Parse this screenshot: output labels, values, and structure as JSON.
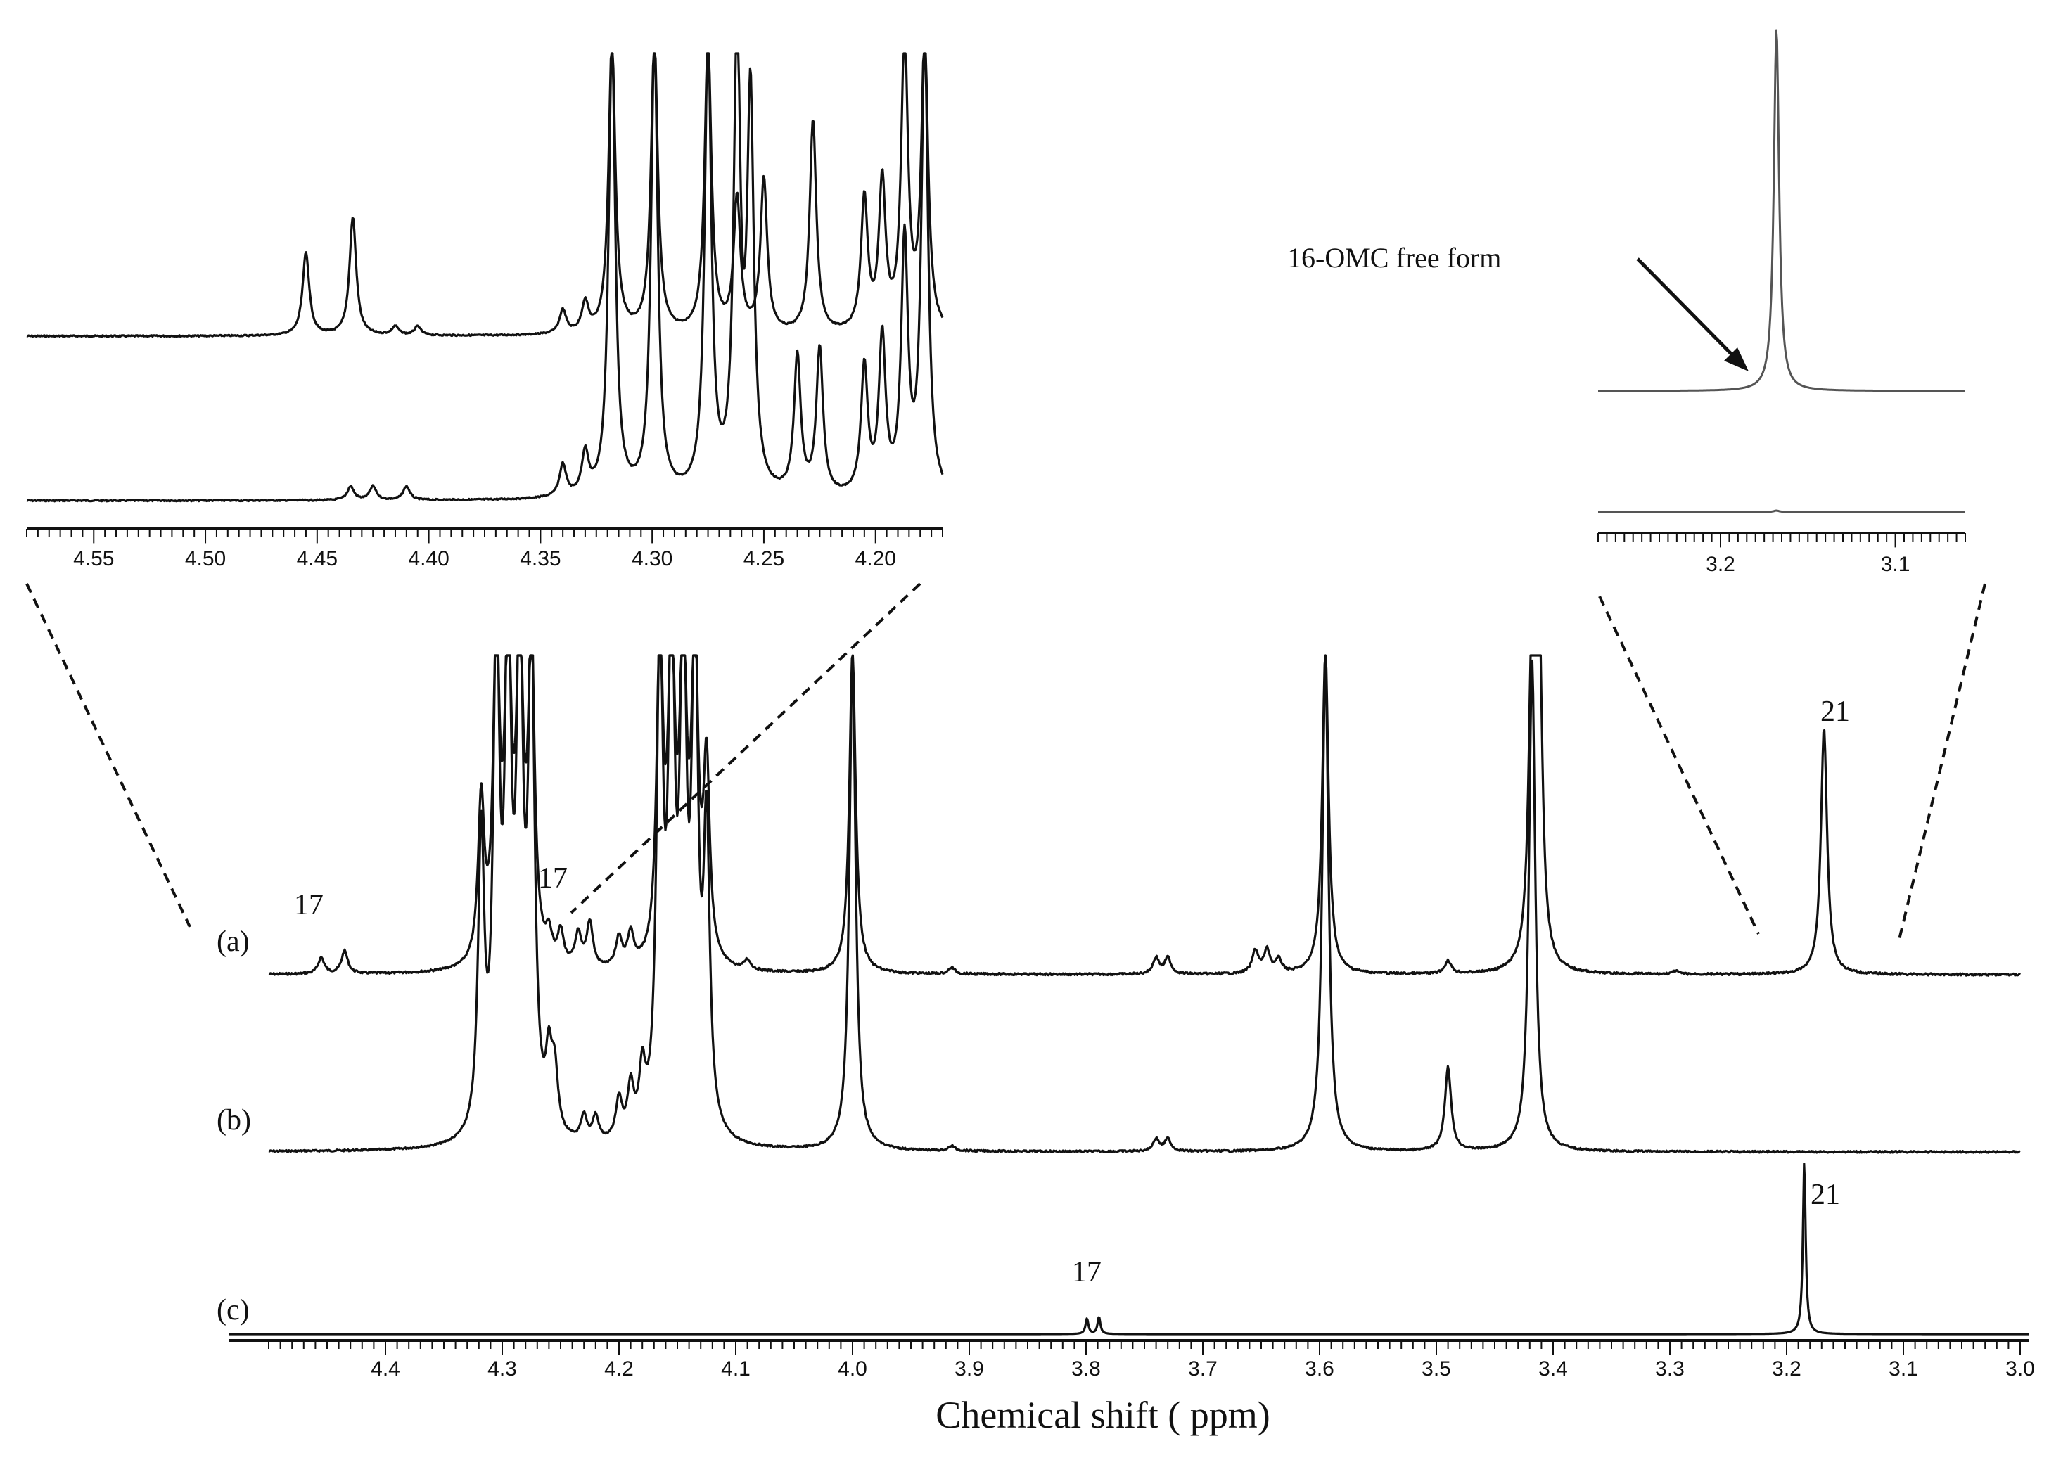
{
  "chart_data": {
    "type": "line",
    "xlabel": "Chemical shift ( ppm)",
    "x_reversed": true,
    "main": {
      "xlim": [
        4.5,
        3.0
      ],
      "major_ticks": [
        4.4,
        4.3,
        4.2,
        4.1,
        4.0,
        3.9,
        3.8,
        3.7,
        3.6,
        3.5,
        3.4,
        3.3,
        3.2,
        3.1,
        3.0
      ],
      "tick_labels": [
        "4.4",
        "4.3",
        "4.2",
        "4.1",
        "4.0",
        "3.9",
        "3.8",
        "3.7",
        "3.6",
        "3.5",
        "3.4",
        "3.3",
        "3.2",
        "3.1",
        "3.0"
      ],
      "minor_tick_step": 0.01,
      "series": [
        {
          "name": "(a)",
          "peaks": [
            {
              "x": 4.455,
              "h": 0.05
            },
            {
              "x": 4.435,
              "h": 0.07
            },
            {
              "x": 4.318,
              "h": 0.5
            },
            {
              "x": 4.305,
              "h": 1.0
            },
            {
              "x": 4.295,
              "h": 1.0
            },
            {
              "x": 4.285,
              "h": 1.0
            },
            {
              "x": 4.275,
              "h": 1.0
            },
            {
              "x": 4.26,
              "h": 0.08
            },
            {
              "x": 4.25,
              "h": 0.1
            },
            {
              "x": 4.235,
              "h": 0.1
            },
            {
              "x": 4.225,
              "h": 0.14
            },
            {
              "x": 4.2,
              "h": 0.09
            },
            {
              "x": 4.19,
              "h": 0.1
            },
            {
              "x": 4.165,
              "h": 1.0
            },
            {
              "x": 4.155,
              "h": 1.0
            },
            {
              "x": 4.145,
              "h": 1.0
            },
            {
              "x": 4.135,
              "h": 1.0
            },
            {
              "x": 4.125,
              "h": 0.6
            },
            {
              "x": 4.09,
              "h": 0.03
            },
            {
              "x": 4.0,
              "h": 1.0
            },
            {
              "x": 3.915,
              "h": 0.02
            },
            {
              "x": 3.74,
              "h": 0.05
            },
            {
              "x": 3.73,
              "h": 0.05
            },
            {
              "x": 3.655,
              "h": 0.07
            },
            {
              "x": 3.645,
              "h": 0.07
            },
            {
              "x": 3.635,
              "h": 0.04
            },
            {
              "x": 3.595,
              "h": 1.0
            },
            {
              "x": 3.49,
              "h": 0.04
            },
            {
              "x": 3.418,
              "h": 1.0
            },
            {
              "x": 3.412,
              "h": 1.0
            },
            {
              "x": 3.295,
              "h": 0.01
            },
            {
              "x": 3.168,
              "h": 0.76
            }
          ]
        },
        {
          "name": "(b)",
          "peaks": [
            {
              "x": 4.318,
              "h": 0.6
            },
            {
              "x": 4.305,
              "h": 1.0
            },
            {
              "x": 4.295,
              "h": 1.0
            },
            {
              "x": 4.285,
              "h": 1.0
            },
            {
              "x": 4.275,
              "h": 1.0
            },
            {
              "x": 4.26,
              "h": 0.14
            },
            {
              "x": 4.255,
              "h": 0.12
            },
            {
              "x": 4.23,
              "h": 0.05
            },
            {
              "x": 4.22,
              "h": 0.05
            },
            {
              "x": 4.2,
              "h": 0.08
            },
            {
              "x": 4.19,
              "h": 0.1
            },
            {
              "x": 4.18,
              "h": 0.12
            },
            {
              "x": 4.165,
              "h": 1.0
            },
            {
              "x": 4.155,
              "h": 1.0
            },
            {
              "x": 4.145,
              "h": 1.0
            },
            {
              "x": 4.135,
              "h": 1.0
            },
            {
              "x": 4.125,
              "h": 0.6
            },
            {
              "x": 4.0,
              "h": 1.0
            },
            {
              "x": 3.915,
              "h": 0.01
            },
            {
              "x": 3.74,
              "h": 0.025
            },
            {
              "x": 3.73,
              "h": 0.025
            },
            {
              "x": 3.595,
              "h": 1.0
            },
            {
              "x": 3.49,
              "h": 0.17
            },
            {
              "x": 3.418,
              "h": 1.0
            }
          ]
        },
        {
          "name": "(c)",
          "peaks": [
            {
              "x": 3.785,
              "h": 0.09
            },
            {
              "x": 3.775,
              "h": 0.1
            },
            {
              "x": 3.187,
              "h": 1.0
            }
          ]
        }
      ],
      "annotations": [
        {
          "text": "17",
          "series": "(a)",
          "x": 4.435
        },
        {
          "text": "17",
          "series": "(a)",
          "x": 4.225
        },
        {
          "text": "21",
          "series": "(a)",
          "x": 3.168
        },
        {
          "text": "17",
          "series": "(c)",
          "x": 3.78
        },
        {
          "text": "21",
          "series": "(c)",
          "x": 3.187
        }
      ]
    },
    "inset_left": {
      "xlim": [
        4.58,
        4.17
      ],
      "major_ticks": [
        4.55,
        4.5,
        4.45,
        4.4,
        4.35,
        4.3,
        4.25,
        4.2
      ],
      "tick_labels": [
        "4.55",
        "4.50",
        "4.45",
        "4.40",
        "4.35",
        "4.30",
        "4.25",
        "4.20"
      ],
      "minor_tick_step": 0.005,
      "series": [
        {
          "name": "upper",
          "peaks": [
            {
              "x": 4.455,
              "h": 0.28
            },
            {
              "x": 4.434,
              "h": 0.4
            },
            {
              "x": 4.415,
              "h": 0.03
            },
            {
              "x": 4.405,
              "h": 0.03
            },
            {
              "x": 4.34,
              "h": 0.08
            },
            {
              "x": 4.33,
              "h": 0.1
            },
            {
              "x": 4.318,
              "h": 1.0
            },
            {
              "x": 4.299,
              "h": 1.0
            },
            {
              "x": 4.275,
              "h": 1.0
            },
            {
              "x": 4.262,
              "h": 0.45
            },
            {
              "x": 4.25,
              "h": 0.52
            },
            {
              "x": 4.228,
              "h": 0.72
            },
            {
              "x": 4.205,
              "h": 0.45
            },
            {
              "x": 4.197,
              "h": 0.5
            },
            {
              "x": 4.187,
              "h": 1.0
            },
            {
              "x": 4.178,
              "h": 1.0
            }
          ]
        },
        {
          "name": "lower",
          "peaks": [
            {
              "x": 4.435,
              "h": 0.03
            },
            {
              "x": 4.425,
              "h": 0.03
            },
            {
              "x": 4.41,
              "h": 0.03
            },
            {
              "x": 4.34,
              "h": 0.07
            },
            {
              "x": 4.33,
              "h": 0.09
            },
            {
              "x": 4.318,
              "h": 1.0
            },
            {
              "x": 4.299,
              "h": 1.0
            },
            {
              "x": 4.275,
              "h": 1.0
            },
            {
              "x": 4.262,
              "h": 1.0
            },
            {
              "x": 4.256,
              "h": 0.85
            },
            {
              "x": 4.235,
              "h": 0.3
            },
            {
              "x": 4.225,
              "h": 0.32
            },
            {
              "x": 4.205,
              "h": 0.28
            },
            {
              "x": 4.197,
              "h": 0.34
            },
            {
              "x": 4.187,
              "h": 0.55
            },
            {
              "x": 4.178,
              "h": 1.0
            }
          ]
        }
      ]
    },
    "inset_right": {
      "xlim": [
        3.27,
        3.06
      ],
      "major_ticks": [
        3.2,
        3.1
      ],
      "tick_labels": [
        "3.2",
        "3.1"
      ],
      "minor_tick_step": 0.005,
      "series": [
        {
          "name": "upper",
          "peaks": [
            {
              "x": 3.168,
              "h": 1.0
            }
          ]
        },
        {
          "name": "lower",
          "peaks": [
            {
              "x": 3.168,
              "h": 0.02
            }
          ]
        }
      ],
      "annotation": "16-OMC free form"
    }
  }
}
